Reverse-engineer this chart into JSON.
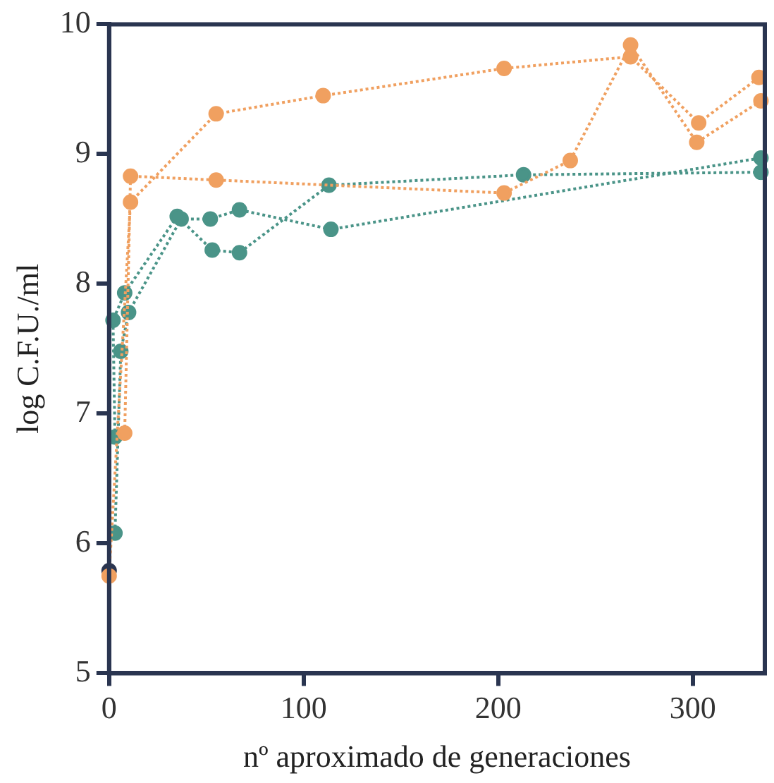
{
  "chart_data": {
    "type": "line",
    "xlabel": "nº aproximado de generaciones",
    "ylabel": "log C.F.U./ml",
    "xlim": [
      0,
      337
    ],
    "xticks": [
      0,
      100,
      200,
      300
    ],
    "ylim": [
      5,
      10
    ],
    "yticks": [
      5,
      6,
      7,
      8,
      9,
      10
    ],
    "grid": false,
    "legend": false,
    "marker": "circle",
    "line_style": "dotted",
    "series": [
      {
        "color": "#f0a060",
        "x": [
          0,
          11,
          55,
          110,
          203,
          268,
          303,
          334
        ],
        "values": [
          5.75,
          8.63,
          9.31,
          9.45,
          9.66,
          9.75,
          9.24,
          9.59
        ]
      },
      {
        "color": "#f0a060",
        "x": [
          8,
          11,
          55,
          203,
          237,
          268,
          302,
          335
        ],
        "values": [
          6.85,
          8.83,
          8.8,
          8.7,
          8.95,
          9.84,
          9.09,
          9.41
        ]
      },
      {
        "color": "#4a9488",
        "x": [
          3,
          2,
          8,
          35,
          53,
          67,
          113,
          213,
          335
        ],
        "values": [
          6.82,
          7.72,
          7.93,
          8.52,
          8.26,
          8.24,
          8.76,
          8.84,
          8.86
        ]
      },
      {
        "color": "#4a9488",
        "x": [
          3,
          6,
          10,
          37,
          52,
          67,
          114,
          335
        ],
        "values": [
          6.08,
          7.48,
          7.78,
          8.5,
          8.5,
          8.57,
          8.42,
          8.97
        ]
      },
      {
        "type": "scatter",
        "color": "#2a3550",
        "x": [
          0
        ],
        "values": [
          5.79
        ]
      }
    ]
  }
}
